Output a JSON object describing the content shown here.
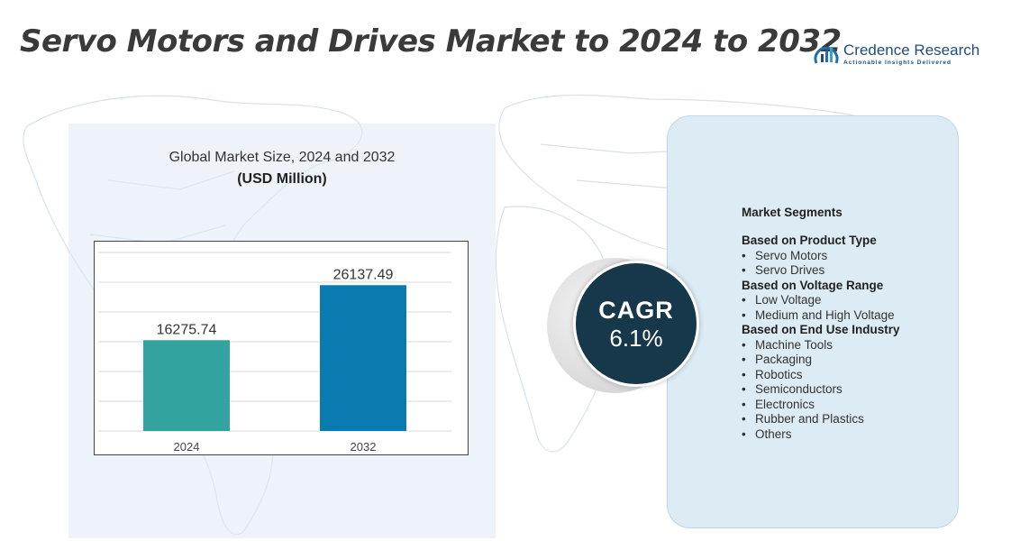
{
  "title": "Servo Motors and Drives Market to 2024 to 2032",
  "logo": {
    "name": "Credence Research",
    "tagline": "Actionable Insights Delivered"
  },
  "chart_data": {
    "type": "bar",
    "title": "Global Market Size, 2024 and 2032",
    "unit": "(USD Million)",
    "categories": [
      "2024",
      "2032"
    ],
    "values": [
      16275.74,
      26137.49
    ],
    "value_labels": [
      "16275.74",
      "26137.49"
    ],
    "colors": [
      "#33a3a0",
      "#0a7bb0"
    ],
    "ylim": [
      0,
      32000
    ],
    "grid": true,
    "legend": "none"
  },
  "cagr": {
    "label": "CAGR",
    "value": "6.1%"
  },
  "segments": {
    "heading": "Market Segments",
    "groups": [
      {
        "title": "Based on Product Type",
        "items": [
          "Servo Motors",
          "Servo Drives"
        ]
      },
      {
        "title": "Based on Voltage Range",
        "items": [
          "Low Voltage",
          "Medium and High Voltage"
        ]
      },
      {
        "title": "Based on End Use Industry",
        "items": [
          "Machine Tools",
          "Packaging",
          "Robotics",
          "Semiconductors",
          "Electronics",
          "Rubber and Plastics",
          "Others"
        ]
      }
    ]
  }
}
